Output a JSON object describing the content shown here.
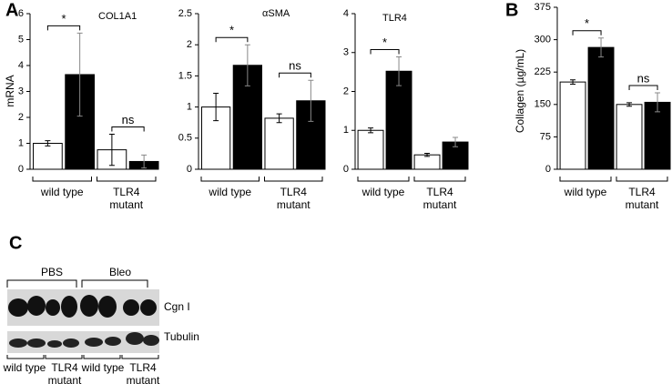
{
  "chart_data": [
    {
      "type": "bar",
      "panel": "A",
      "title": "COL1A1",
      "y_label": "mRNA",
      "categories": [
        "wild type",
        "TLR4 mutant"
      ],
      "series": [
        {
          "color": "#ffffff",
          "values": [
            1.0,
            0.75
          ],
          "errors": [
            0.1,
            0.6
          ]
        },
        {
          "color": "#000000",
          "values": [
            3.65,
            0.3
          ],
          "errors": [
            1.6,
            0.25
          ]
        }
      ],
      "ylim": [
        0,
        6
      ],
      "yticks": [
        0,
        1,
        2,
        3,
        4,
        5,
        6
      ],
      "annotations": [
        {
          "text": "*",
          "category": 0
        },
        {
          "text": "ns",
          "category": 1
        }
      ]
    },
    {
      "type": "bar",
      "title": "αSMA",
      "categories": [
        "wild type",
        "TLR4 mutant"
      ],
      "series": [
        {
          "color": "#ffffff",
          "values": [
            1.0,
            0.82
          ],
          "errors": [
            0.22,
            0.07
          ]
        },
        {
          "color": "#000000",
          "values": [
            1.67,
            1.1
          ],
          "errors": [
            0.33,
            0.33
          ]
        }
      ],
      "ylim": [
        0,
        2.5
      ],
      "yticks": [
        0,
        0.5,
        1,
        1.5,
        2,
        2.5
      ],
      "annotations": [
        {
          "text": "*",
          "category": 0
        },
        {
          "text": "ns",
          "category": 1
        }
      ]
    },
    {
      "type": "bar",
      "title": "TLR4",
      "categories": [
        "wild type",
        "TLR4 mutant"
      ],
      "series": [
        {
          "color": "#ffffff",
          "values": [
            1.0,
            0.37
          ],
          "errors": [
            0.06,
            0.04
          ]
        },
        {
          "color": "#000000",
          "values": [
            2.52,
            0.7
          ],
          "errors": [
            0.37,
            0.12
          ]
        }
      ],
      "ylim": [
        0,
        4
      ],
      "yticks": [
        0,
        1,
        2,
        3,
        4
      ],
      "annotations": [
        {
          "text": "*",
          "category": 0
        }
      ]
    },
    {
      "type": "bar",
      "panel": "B",
      "y_label": "Collagen (µg/mL)",
      "categories": [
        "wild type",
        "TLR4 mutant"
      ],
      "series": [
        {
          "color": "#ffffff",
          "values": [
            202,
            150
          ],
          "errors": [
            5,
            4
          ]
        },
        {
          "color": "#000000",
          "values": [
            282,
            155
          ],
          "errors": [
            22,
            22
          ]
        }
      ],
      "ylim": [
        0,
        375
      ],
      "yticks": [
        0,
        75,
        150,
        225,
        300,
        375
      ],
      "annotations": [
        {
          "text": "*",
          "category": 0
        },
        {
          "text": "ns",
          "category": 1
        }
      ]
    }
  ],
  "blot": {
    "panel": "C",
    "conditions": [
      "PBS",
      "Bleo"
    ],
    "bands": [
      "Cgn I",
      "Tubulin"
    ],
    "lanes": [
      "wild type",
      "TLR4 mutant",
      "wild type",
      "TLR4 mutant"
    ]
  }
}
